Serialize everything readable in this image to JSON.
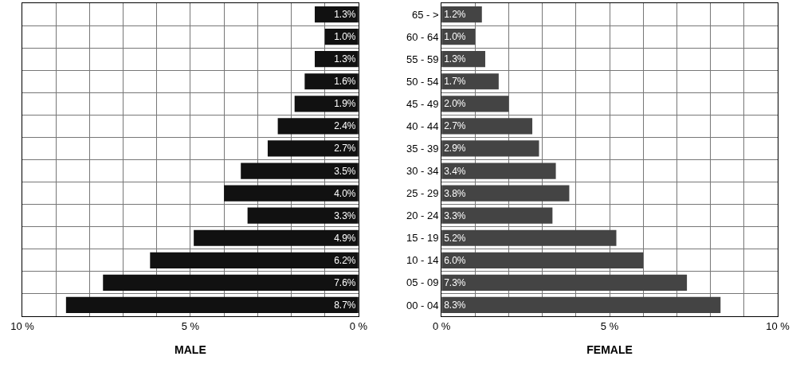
{
  "chart_data": [
    {
      "type": "bar",
      "orientation": "horizontal",
      "xlabel": "MALE",
      "categories": [
        "65 - >",
        "60 - 64",
        "55 - 59",
        "50 - 54",
        "45 - 49",
        "40 - 44",
        "35 - 39",
        "30 - 34",
        "25 - 29",
        "20 - 24",
        "15 - 19",
        "10 - 14",
        "05 - 09",
        "00 - 04"
      ],
      "values": [
        1.3,
        1.0,
        1.3,
        1.6,
        1.9,
        2.4,
        2.7,
        3.5,
        4.0,
        3.3,
        4.9,
        6.2,
        7.6,
        8.7
      ],
      "value_labels": [
        "1.3%",
        "1.0%",
        "1.3%",
        "1.6%",
        "1.9%",
        "2.4%",
        "2.7%",
        "3.5%",
        "4.0%",
        "3.3%",
        "4.9%",
        "6.2%",
        "7.6%",
        "8.7%"
      ],
      "color": "#111111",
      "xlim": [
        10,
        0
      ],
      "xticks": [
        {
          "value": 10,
          "label": "10 %"
        },
        {
          "value": 9,
          "label": null
        },
        {
          "value": 8,
          "label": null
        },
        {
          "value": 7,
          "label": null
        },
        {
          "value": 6,
          "label": null
        },
        {
          "value": 5,
          "label": "5 %"
        },
        {
          "value": 4,
          "label": null
        },
        {
          "value": 3,
          "label": null
        },
        {
          "value": 2,
          "label": null
        },
        {
          "value": 1,
          "label": null
        },
        {
          "value": 0,
          "label": "0 %"
        }
      ],
      "grid": true,
      "tick_labels": "x"
    },
    {
      "type": "bar",
      "orientation": "horizontal",
      "xlabel": "FEMALE",
      "categories": [
        "65 - >",
        "60 - 64",
        "55 - 59",
        "50 - 54",
        "45 - 49",
        "40 - 44",
        "35 - 39",
        "30 - 34",
        "25 - 29",
        "20 - 24",
        "15 - 19",
        "10 - 14",
        "05 - 09",
        "00 - 04"
      ],
      "values": [
        1.2,
        1.0,
        1.3,
        1.7,
        2.0,
        2.7,
        2.9,
        3.4,
        3.8,
        3.3,
        5.2,
        6.0,
        7.3,
        8.3
      ],
      "value_labels": [
        "1.2%",
        "1.0%",
        "1.3%",
        "1.7%",
        "2.0%",
        "2.7%",
        "2.9%",
        "3.4%",
        "3.8%",
        "3.3%",
        "5.2%",
        "6.0%",
        "7.3%",
        "8.3%"
      ],
      "color": "#444444",
      "xlim": [
        0,
        10
      ],
      "xticks": [
        {
          "value": 0,
          "label": "0 %"
        },
        {
          "value": 1,
          "label": null
        },
        {
          "value": 2,
          "label": null
        },
        {
          "value": 3,
          "label": null
        },
        {
          "value": 4,
          "label": null
        },
        {
          "value": 5,
          "label": "5 %"
        },
        {
          "value": 6,
          "label": null
        },
        {
          "value": 7,
          "label": null
        },
        {
          "value": 8,
          "label": null
        },
        {
          "value": 9,
          "label": null
        },
        {
          "value": 10,
          "label": "10 %"
        }
      ],
      "grid": true
    }
  ]
}
